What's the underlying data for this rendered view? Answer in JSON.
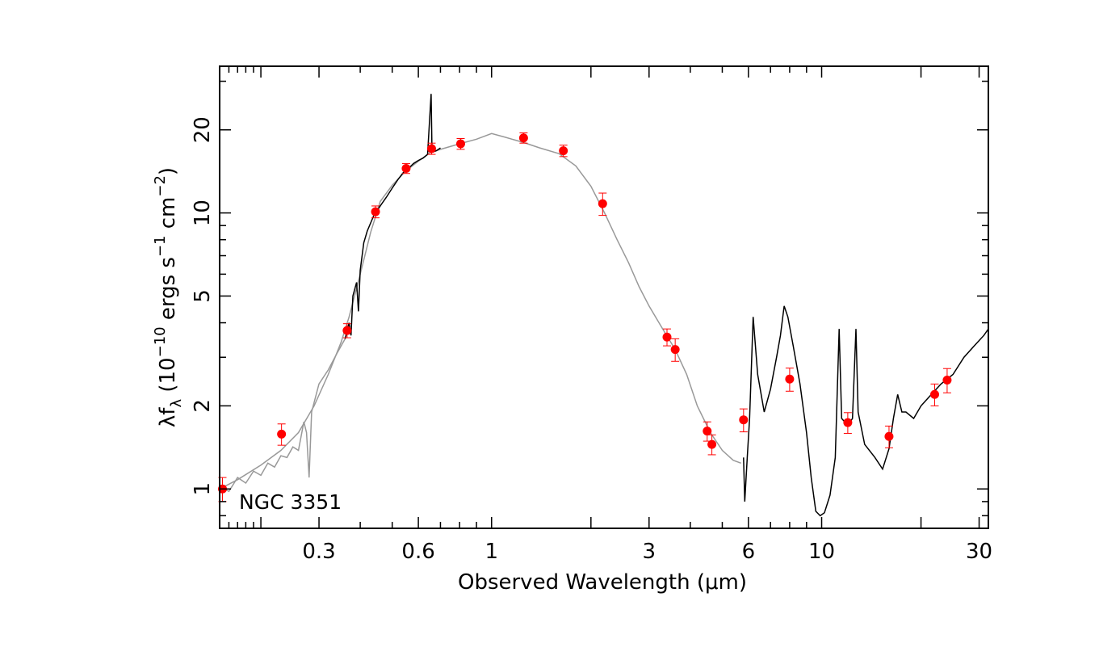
{
  "chart_data": {
    "type": "scatter",
    "annotation": "NGC 3351",
    "xlabel": "Observed Wavelength (μm)",
    "ylabel": {
      "prefix": "λf",
      "sub": "λ",
      "open": " (10",
      "exp1": "−10",
      "mid": " ergs s",
      "exp2": "−1",
      "mid2": " cm",
      "exp3": "−2",
      "close": ")"
    },
    "x_scale": "log",
    "y_scale": "log",
    "xlim": [
      0.15,
      32
    ],
    "ylim": [
      0.72,
      34
    ],
    "x_ticklabels": [
      {
        "value": 0.3,
        "label": "0.3"
      },
      {
        "value": 0.6,
        "label": "0.6"
      },
      {
        "value": 1,
        "label": "1"
      },
      {
        "value": 3,
        "label": "3"
      },
      {
        "value": 6,
        "label": "6"
      },
      {
        "value": 10,
        "label": "10"
      },
      {
        "value": 30,
        "label": "30"
      }
    ],
    "y_ticklabels": [
      {
        "value": 1,
        "label": "1"
      },
      {
        "value": 2,
        "label": "2"
      },
      {
        "value": 5,
        "label": "5"
      },
      {
        "value": 10,
        "label": "10"
      },
      {
        "value": 20,
        "label": "20"
      }
    ],
    "grid": false,
    "colors": {
      "points": "#ff0000",
      "model": "#999999",
      "spectrum": "#000000"
    },
    "photometry": [
      {
        "x": 0.153,
        "y": 1.0,
        "err": 0.1
      },
      {
        "x": 0.231,
        "y": 1.58,
        "err": 0.14
      },
      {
        "x": 0.365,
        "y": 3.75,
        "err": 0.22
      },
      {
        "x": 0.445,
        "y": 10.1,
        "err": 0.5
      },
      {
        "x": 0.551,
        "y": 14.5,
        "err": 0.6
      },
      {
        "x": 0.658,
        "y": 17.1,
        "err": 0.8
      },
      {
        "x": 0.806,
        "y": 17.8,
        "err": 0.8
      },
      {
        "x": 1.25,
        "y": 18.7,
        "err": 0.8
      },
      {
        "x": 1.65,
        "y": 16.8,
        "err": 0.8
      },
      {
        "x": 2.17,
        "y": 10.8,
        "err": 1.0
      },
      {
        "x": 3.4,
        "y": 3.55,
        "err": 0.25
      },
      {
        "x": 3.6,
        "y": 3.2,
        "err": 0.3
      },
      {
        "x": 4.5,
        "y": 1.62,
        "err": 0.13
      },
      {
        "x": 4.65,
        "y": 1.45,
        "err": 0.12
      },
      {
        "x": 5.8,
        "y": 1.78,
        "err": 0.17
      },
      {
        "x": 8.0,
        "y": 2.5,
        "err": 0.24
      },
      {
        "x": 12.0,
        "y": 1.74,
        "err": 0.15
      },
      {
        "x": 16.0,
        "y": 1.55,
        "err": 0.14
      },
      {
        "x": 22.0,
        "y": 2.2,
        "err": 0.2
      },
      {
        "x": 24.0,
        "y": 2.48,
        "err": 0.25
      }
    ],
    "model_curve": [
      [
        0.15,
        1.0
      ],
      [
        0.17,
        1.08
      ],
      [
        0.2,
        1.22
      ],
      [
        0.23,
        1.38
      ],
      [
        0.26,
        1.6
      ],
      [
        0.29,
        2.0
      ],
      [
        0.32,
        2.6
      ],
      [
        0.35,
        3.4
      ],
      [
        0.37,
        4.2
      ],
      [
        0.4,
        6.0
      ],
      [
        0.43,
        8.5
      ],
      [
        0.46,
        11.0
      ],
      [
        0.5,
        12.6
      ],
      [
        0.55,
        14.2
      ],
      [
        0.6,
        15.4
      ],
      [
        0.65,
        16.5
      ],
      [
        0.7,
        17.0
      ],
      [
        0.8,
        17.8
      ],
      [
        0.9,
        18.5
      ],
      [
        1.0,
        19.4
      ],
      [
        1.1,
        18.8
      ],
      [
        1.25,
        18.0
      ],
      [
        1.4,
        17.2
      ],
      [
        1.6,
        16.4
      ],
      [
        1.8,
        14.8
      ],
      [
        2.0,
        12.5
      ],
      [
        2.2,
        10.0
      ],
      [
        2.4,
        8.0
      ],
      [
        2.6,
        6.6
      ],
      [
        2.8,
        5.4
      ],
      [
        3.0,
        4.6
      ],
      [
        3.3,
        3.8
      ],
      [
        3.6,
        3.2
      ],
      [
        3.9,
        2.6
      ],
      [
        4.2,
        2.0
      ],
      [
        4.6,
        1.6
      ],
      [
        5.0,
        1.38
      ],
      [
        5.4,
        1.27
      ],
      [
        5.7,
        1.24
      ]
    ],
    "uv_curve": [
      [
        0.15,
        1.02
      ],
      [
        0.16,
        0.98
      ],
      [
        0.17,
        1.1
      ],
      [
        0.18,
        1.05
      ],
      [
        0.19,
        1.16
      ],
      [
        0.2,
        1.12
      ],
      [
        0.21,
        1.24
      ],
      [
        0.22,
        1.2
      ],
      [
        0.23,
        1.32
      ],
      [
        0.24,
        1.3
      ],
      [
        0.25,
        1.42
      ],
      [
        0.26,
        1.38
      ],
      [
        0.27,
        1.75
      ],
      [
        0.275,
        1.6
      ],
      [
        0.28,
        1.1
      ],
      [
        0.285,
        1.9
      ],
      [
        0.3,
        2.4
      ],
      [
        0.32,
        2.7
      ],
      [
        0.34,
        3.1
      ],
      [
        0.36,
        3.5
      ]
    ],
    "optical_spectrum": [
      [
        0.36,
        3.5
      ],
      [
        0.37,
        4.0
      ],
      [
        0.375,
        3.6
      ],
      [
        0.38,
        5.0
      ],
      [
        0.39,
        5.6
      ],
      [
        0.395,
        4.4
      ],
      [
        0.4,
        6.2
      ],
      [
        0.41,
        7.8
      ],
      [
        0.42,
        8.6
      ],
      [
        0.43,
        9.2
      ],
      [
        0.44,
        9.8
      ],
      [
        0.46,
        10.6
      ],
      [
        0.48,
        11.4
      ],
      [
        0.5,
        12.3
      ],
      [
        0.52,
        13.2
      ],
      [
        0.54,
        14.0
      ],
      [
        0.56,
        14.5
      ],
      [
        0.58,
        15.1
      ],
      [
        0.6,
        15.5
      ],
      [
        0.62,
        15.8
      ],
      [
        0.64,
        16.3
      ],
      [
        0.656,
        27.0
      ],
      [
        0.66,
        16.6
      ],
      [
        0.68,
        16.8
      ],
      [
        0.7,
        17.2
      ]
    ],
    "ir_spectrum": [
      [
        5.8,
        1.3
      ],
      [
        5.85,
        0.9
      ],
      [
        5.95,
        1.3
      ],
      [
        6.05,
        1.8
      ],
      [
        6.2,
        4.2
      ],
      [
        6.4,
        2.6
      ],
      [
        6.7,
        1.9
      ],
      [
        7.0,
        2.3
      ],
      [
        7.3,
        3.0
      ],
      [
        7.5,
        3.6
      ],
      [
        7.7,
        4.6
      ],
      [
        7.9,
        4.2
      ],
      [
        8.2,
        3.3
      ],
      [
        8.6,
        2.4
      ],
      [
        9.0,
        1.6
      ],
      [
        9.3,
        1.1
      ],
      [
        9.6,
        0.83
      ],
      [
        9.9,
        0.8
      ],
      [
        10.2,
        0.82
      ],
      [
        10.6,
        0.95
      ],
      [
        11.0,
        1.3
      ],
      [
        11.3,
        3.8
      ],
      [
        11.5,
        1.8
      ],
      [
        12.0,
        1.7
      ],
      [
        12.4,
        1.8
      ],
      [
        12.7,
        3.8
      ],
      [
        12.9,
        1.9
      ],
      [
        13.5,
        1.45
      ],
      [
        14.5,
        1.3
      ],
      [
        15.3,
        1.18
      ],
      [
        16.0,
        1.4
      ],
      [
        16.5,
        1.8
      ],
      [
        17.0,
        2.2
      ],
      [
        17.5,
        1.9
      ],
      [
        18.0,
        1.9
      ],
      [
        19.0,
        1.8
      ],
      [
        20.0,
        2.0
      ],
      [
        21.5,
        2.2
      ],
      [
        23.0,
        2.4
      ],
      [
        25.0,
        2.6
      ],
      [
        27.0,
        3.0
      ],
      [
        29.0,
        3.3
      ],
      [
        31.0,
        3.6
      ],
      [
        32.0,
        3.8
      ]
    ]
  }
}
